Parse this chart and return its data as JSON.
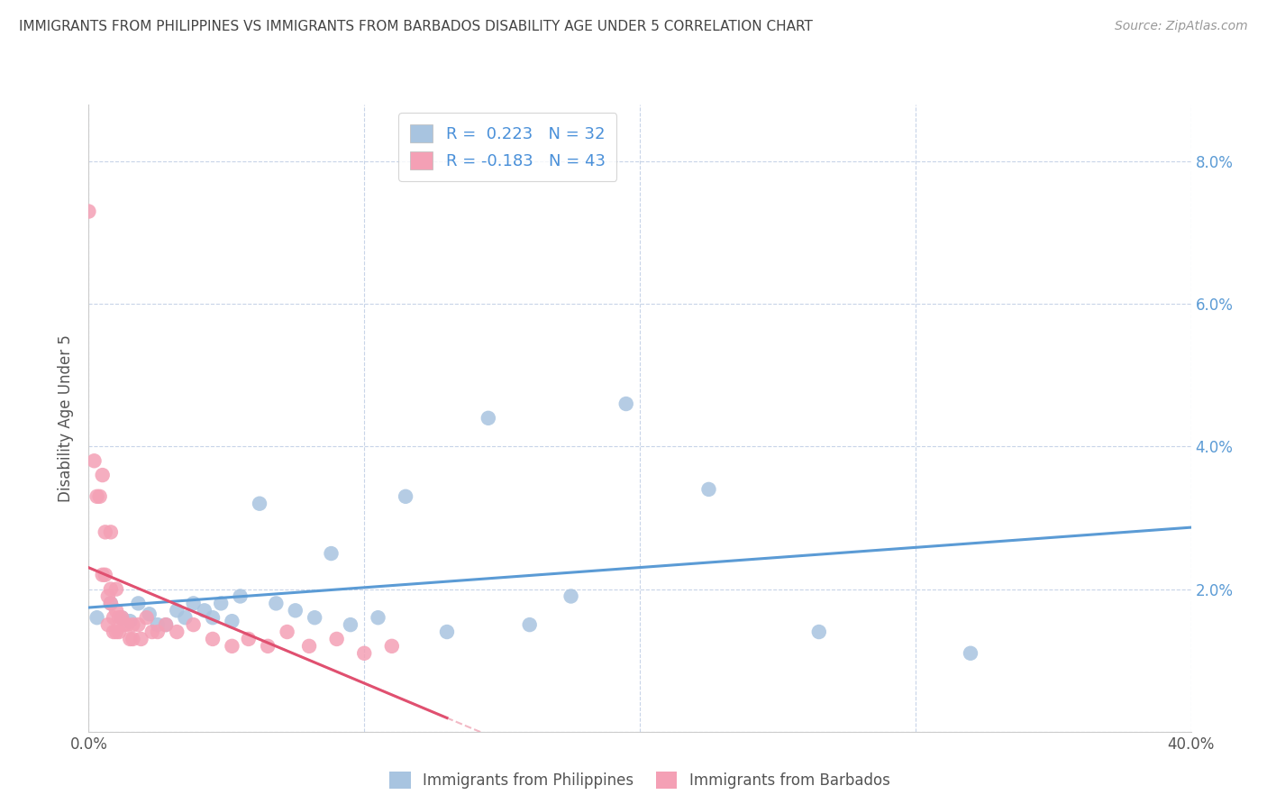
{
  "title": "IMMIGRANTS FROM PHILIPPINES VS IMMIGRANTS FROM BARBADOS DISABILITY AGE UNDER 5 CORRELATION CHART",
  "source": "Source: ZipAtlas.com",
  "ylabel": "Disability Age Under 5",
  "xlim": [
    0.0,
    0.4
  ],
  "ylim": [
    0.0,
    0.088
  ],
  "philippines_color": "#a8c4e0",
  "barbados_color": "#f4a0b5",
  "philippines_R": 0.223,
  "philippines_N": 32,
  "barbados_R": -0.183,
  "barbados_N": 43,
  "philippines_x": [
    0.003,
    0.008,
    0.012,
    0.015,
    0.018,
    0.022,
    0.025,
    0.028,
    0.032,
    0.035,
    0.038,
    0.042,
    0.045,
    0.048,
    0.052,
    0.055,
    0.062,
    0.068,
    0.075,
    0.082,
    0.088,
    0.095,
    0.105,
    0.115,
    0.13,
    0.145,
    0.16,
    0.175,
    0.195,
    0.225,
    0.265,
    0.32
  ],
  "philippines_y": [
    0.016,
    0.018,
    0.016,
    0.0155,
    0.018,
    0.0165,
    0.015,
    0.015,
    0.017,
    0.016,
    0.018,
    0.017,
    0.016,
    0.018,
    0.0155,
    0.019,
    0.032,
    0.018,
    0.017,
    0.016,
    0.025,
    0.015,
    0.016,
    0.033,
    0.014,
    0.044,
    0.015,
    0.019,
    0.046,
    0.034,
    0.014,
    0.011
  ],
  "barbados_x": [
    0.0,
    0.002,
    0.003,
    0.004,
    0.005,
    0.005,
    0.006,
    0.006,
    0.007,
    0.007,
    0.008,
    0.008,
    0.008,
    0.009,
    0.009,
    0.01,
    0.01,
    0.01,
    0.011,
    0.011,
    0.012,
    0.013,
    0.014,
    0.015,
    0.016,
    0.016,
    0.018,
    0.019,
    0.021,
    0.023,
    0.025,
    0.028,
    0.032,
    0.038,
    0.045,
    0.052,
    0.058,
    0.065,
    0.072,
    0.08,
    0.09,
    0.1,
    0.11
  ],
  "barbados_y": [
    0.073,
    0.038,
    0.033,
    0.033,
    0.036,
    0.022,
    0.028,
    0.022,
    0.019,
    0.015,
    0.028,
    0.02,
    0.018,
    0.016,
    0.014,
    0.02,
    0.017,
    0.014,
    0.016,
    0.014,
    0.016,
    0.015,
    0.015,
    0.013,
    0.015,
    0.013,
    0.015,
    0.013,
    0.016,
    0.014,
    0.014,
    0.015,
    0.014,
    0.015,
    0.013,
    0.012,
    0.013,
    0.012,
    0.014,
    0.012,
    0.013,
    0.011,
    0.012
  ],
  "legend_label_philippines": "Immigrants from Philippines",
  "legend_label_barbados": "Immigrants from Barbados",
  "background_color": "#ffffff",
  "grid_color": "#c8d4e8",
  "trend_philippines_color": "#5b9bd5",
  "trend_barbados_color": "#e05070"
}
